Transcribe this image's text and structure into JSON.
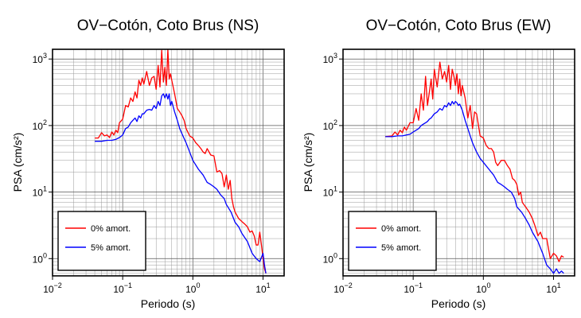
{
  "chart_data": [
    {
      "type": "line",
      "title": "OV−Cotón, Coto Brus (NS)",
      "xlabel": "Periodo (s)",
      "ylabel": "PSA (cm/s²)",
      "xscale": "log",
      "yscale": "log",
      "xlim": [
        0.01,
        20
      ],
      "ylim": [
        0.55,
        1400
      ],
      "grid": true,
      "legend": "bottom-left",
      "xticks": [
        {
          "value": 0.01,
          "base": "10",
          "exp": "−2"
        },
        {
          "value": 0.1,
          "base": "10",
          "exp": "−1"
        },
        {
          "value": 1,
          "base": "10",
          "exp": "0"
        },
        {
          "value": 10,
          "base": "10",
          "exp": "1"
        }
      ],
      "yticks": [
        {
          "value": 1,
          "base": "10",
          "exp": "0"
        },
        {
          "value": 10,
          "base": "10",
          "exp": "1"
        },
        {
          "value": 100,
          "base": "10",
          "exp": "2"
        },
        {
          "value": 1000,
          "base": "10",
          "exp": "3"
        }
      ],
      "series": [
        {
          "name": "0% amort.",
          "color": "#ff0000",
          "x": [
            0.04,
            0.045,
            0.05,
            0.055,
            0.06,
            0.065,
            0.07,
            0.075,
            0.08,
            0.085,
            0.09,
            0.1,
            0.11,
            0.12,
            0.13,
            0.14,
            0.15,
            0.16,
            0.17,
            0.18,
            0.19,
            0.2,
            0.22,
            0.24,
            0.26,
            0.28,
            0.3,
            0.32,
            0.34,
            0.36,
            0.38,
            0.4,
            0.42,
            0.44,
            0.46,
            0.48,
            0.5,
            0.55,
            0.6,
            0.65,
            0.7,
            0.75,
            0.8,
            0.9,
            1.0,
            1.1,
            1.2,
            1.3,
            1.4,
            1.5,
            1.6,
            1.8,
            2.0,
            2.2,
            2.4,
            2.6,
            2.8,
            3.0,
            3.2,
            3.4,
            3.6,
            3.8,
            4.0,
            4.5,
            5.0,
            5.5,
            6.0,
            6.5,
            7.0,
            7.5,
            8.0,
            8.5,
            9.0,
            9.5,
            10.0,
            10.5,
            11.0
          ],
          "values": [
            65,
            65,
            78,
            70,
            72,
            66,
            80,
            72,
            85,
            78,
            110,
            125,
            200,
            190,
            260,
            230,
            320,
            260,
            480,
            400,
            520,
            420,
            650,
            400,
            520,
            550,
            350,
            800,
            380,
            1350,
            450,
            750,
            400,
            1400,
            500,
            600,
            480,
            300,
            180,
            160,
            140,
            120,
            90,
            70,
            65,
            55,
            50,
            45,
            40,
            38,
            45,
            36,
            35,
            20,
            21,
            19,
            12,
            18,
            11,
            15,
            8,
            6,
            5,
            4,
            3.6,
            3.3,
            3.0,
            2.5,
            2.6,
            2.2,
            1.6,
            1.6,
            2.5,
            1.6,
            1.0,
            0.7,
            0.6
          ]
        },
        {
          "name": "5% amort.",
          "color": "#0000ff",
          "x": [
            0.04,
            0.05,
            0.06,
            0.07,
            0.08,
            0.09,
            0.1,
            0.11,
            0.12,
            0.13,
            0.14,
            0.15,
            0.16,
            0.17,
            0.18,
            0.19,
            0.2,
            0.22,
            0.24,
            0.26,
            0.28,
            0.3,
            0.32,
            0.34,
            0.36,
            0.38,
            0.4,
            0.42,
            0.44,
            0.46,
            0.48,
            0.5,
            0.55,
            0.6,
            0.65,
            0.7,
            0.8,
            0.9,
            1.0,
            1.2,
            1.4,
            1.6,
            1.8,
            2.0,
            2.2,
            2.5,
            2.8,
            3.0,
            3.5,
            4.0,
            4.5,
            5.0,
            6.0,
            7.0,
            8.0,
            9.0,
            10.0,
            10.5,
            11.0
          ],
          "values": [
            58,
            58,
            60,
            60,
            62,
            66,
            72,
            90,
            95,
            110,
            120,
            130,
            115,
            140,
            130,
            150,
            150,
            170,
            175,
            170,
            200,
            180,
            230,
            200,
            280,
            300,
            260,
            300,
            250,
            300,
            200,
            230,
            160,
            120,
            90,
            75,
            55,
            40,
            30,
            22,
            18,
            14,
            13,
            12,
            11,
            9,
            8,
            6.5,
            5,
            3.5,
            3,
            2.4,
            1.8,
            1.2,
            1.0,
            0.9,
            1.2,
            0.8,
            0.6
          ]
        }
      ]
    },
    {
      "type": "line",
      "title": "OV−Cotón, Coto Brus (EW)",
      "xlabel": "Periodo (s)",
      "ylabel": "PSA (cm/s²)",
      "xscale": "log",
      "yscale": "log",
      "xlim": [
        0.01,
        20
      ],
      "ylim": [
        0.55,
        1400
      ],
      "grid": true,
      "legend": "bottom-left",
      "xticks": [
        {
          "value": 0.01,
          "base": "10",
          "exp": "−2"
        },
        {
          "value": 0.1,
          "base": "10",
          "exp": "−1"
        },
        {
          "value": 1,
          "base": "10",
          "exp": "0"
        },
        {
          "value": 10,
          "base": "10",
          "exp": "1"
        }
      ],
      "yticks": [
        {
          "value": 1,
          "base": "10",
          "exp": "0"
        },
        {
          "value": 10,
          "base": "10",
          "exp": "1"
        },
        {
          "value": 100,
          "base": "10",
          "exp": "2"
        },
        {
          "value": 1000,
          "base": "10",
          "exp": "3"
        }
      ],
      "series": [
        {
          "name": "0% amort.",
          "color": "#ff0000",
          "x": [
            0.04,
            0.05,
            0.055,
            0.06,
            0.065,
            0.07,
            0.075,
            0.08,
            0.09,
            0.1,
            0.11,
            0.12,
            0.13,
            0.14,
            0.15,
            0.16,
            0.17,
            0.18,
            0.19,
            0.2,
            0.22,
            0.24,
            0.26,
            0.28,
            0.3,
            0.32,
            0.34,
            0.36,
            0.38,
            0.4,
            0.42,
            0.44,
            0.46,
            0.48,
            0.5,
            0.55,
            0.6,
            0.65,
            0.7,
            0.75,
            0.8,
            0.9,
            1.0,
            1.1,
            1.2,
            1.3,
            1.4,
            1.5,
            1.6,
            1.8,
            2.0,
            2.2,
            2.4,
            2.6,
            2.8,
            3.0,
            3.2,
            3.4,
            3.6,
            4.0,
            4.5,
            5.0,
            5.5,
            6.0,
            6.5,
            7.0,
            8.0,
            9.0,
            10.0,
            11.0,
            12.0,
            13.0,
            14.0
          ],
          "values": [
            68,
            70,
            80,
            72,
            85,
            78,
            95,
            85,
            110,
            110,
            180,
            120,
            300,
            170,
            550,
            200,
            320,
            500,
            250,
            700,
            380,
            900,
            500,
            650,
            450,
            800,
            350,
            700,
            550,
            400,
            600,
            300,
            500,
            280,
            400,
            260,
            130,
            200,
            90,
            160,
            150,
            70,
            65,
            50,
            45,
            45,
            40,
            28,
            25,
            30,
            30,
            25,
            22,
            16,
            15,
            13,
            9,
            10,
            7,
            6,
            5,
            4,
            3,
            2.2,
            2.5,
            2.0,
            2.0,
            1.0,
            1.2,
            1.1,
            0.9,
            1.1,
            1.05
          ]
        },
        {
          "name": "5% amort.",
          "color": "#0000ff",
          "x": [
            0.04,
            0.05,
            0.06,
            0.07,
            0.08,
            0.09,
            0.1,
            0.11,
            0.12,
            0.13,
            0.14,
            0.15,
            0.16,
            0.17,
            0.18,
            0.19,
            0.2,
            0.22,
            0.24,
            0.26,
            0.28,
            0.3,
            0.32,
            0.34,
            0.36,
            0.38,
            0.4,
            0.42,
            0.44,
            0.46,
            0.48,
            0.5,
            0.55,
            0.6,
            0.65,
            0.7,
            0.8,
            0.9,
            1.0,
            1.2,
            1.4,
            1.6,
            1.8,
            2.0,
            2.2,
            2.5,
            2.8,
            3.0,
            3.5,
            4.0,
            4.5,
            5.0,
            6.0,
            7.0,
            8.0,
            9.0,
            10.0,
            11.0,
            12.0,
            13.0,
            14.0
          ],
          "values": [
            68,
            68,
            70,
            70,
            72,
            74,
            80,
            85,
            90,
            100,
            105,
            110,
            115,
            125,
            130,
            140,
            150,
            160,
            180,
            170,
            200,
            190,
            220,
            200,
            230,
            210,
            230,
            220,
            200,
            210,
            190,
            170,
            120,
            90,
            70,
            55,
            40,
            32,
            28,
            22,
            18,
            14,
            13,
            12,
            11,
            10,
            8,
            6,
            5,
            4,
            3.2,
            2.5,
            1.8,
            1.2,
            0.8,
            0.7,
            0.6,
            0.7,
            0.6,
            0.65,
            0.6
          ]
        }
      ]
    }
  ]
}
